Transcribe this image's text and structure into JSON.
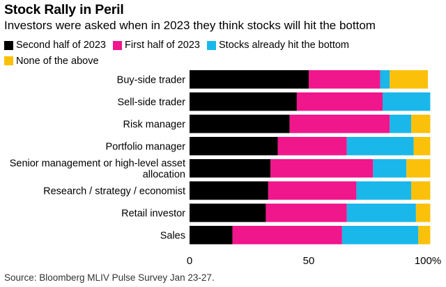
{
  "chart_data": {
    "type": "bar",
    "orientation": "horizontal",
    "stacked": true,
    "title": "Stock Rally in Peril",
    "subtitle": "Investors were asked when in 2023 they think stocks will hit the bottom",
    "source": "Source: Bloomberg MLIV Pulse Survey Jan 23-27.",
    "categories": [
      [
        "Buy-side trader"
      ],
      [
        "Sell-side trader"
      ],
      [
        "Risk manager"
      ],
      [
        "Portfolio manager"
      ],
      [
        "Senior management or high-level asset",
        "allocation"
      ],
      [
        "Research / strategy / economist"
      ],
      [
        "Retail investor"
      ],
      [
        "Sales"
      ]
    ],
    "series": [
      {
        "name": "Second half of 2023",
        "color": "#000000",
        "values": [
          50,
          45,
          42,
          37,
          34,
          33,
          32,
          18
        ]
      },
      {
        "name": "First half of 2023",
        "color": "#f0168c",
        "values": [
          30,
          36,
          42,
          29,
          43,
          37,
          34,
          46
        ]
      },
      {
        "name": "Stocks already hit the bottom",
        "color": "#1ab7ea",
        "values": [
          4,
          20,
          9,
          28,
          14,
          23,
          29,
          32
        ]
      },
      {
        "name": "None of the above",
        "color": "#fbc10a",
        "values": [
          16,
          0,
          8,
          7,
          10,
          8,
          6,
          5
        ]
      }
    ],
    "xlim": [
      0,
      100
    ],
    "xticks": [
      "0",
      "50",
      "100%"
    ],
    "xtick_values": [
      0,
      50,
      100
    ]
  }
}
